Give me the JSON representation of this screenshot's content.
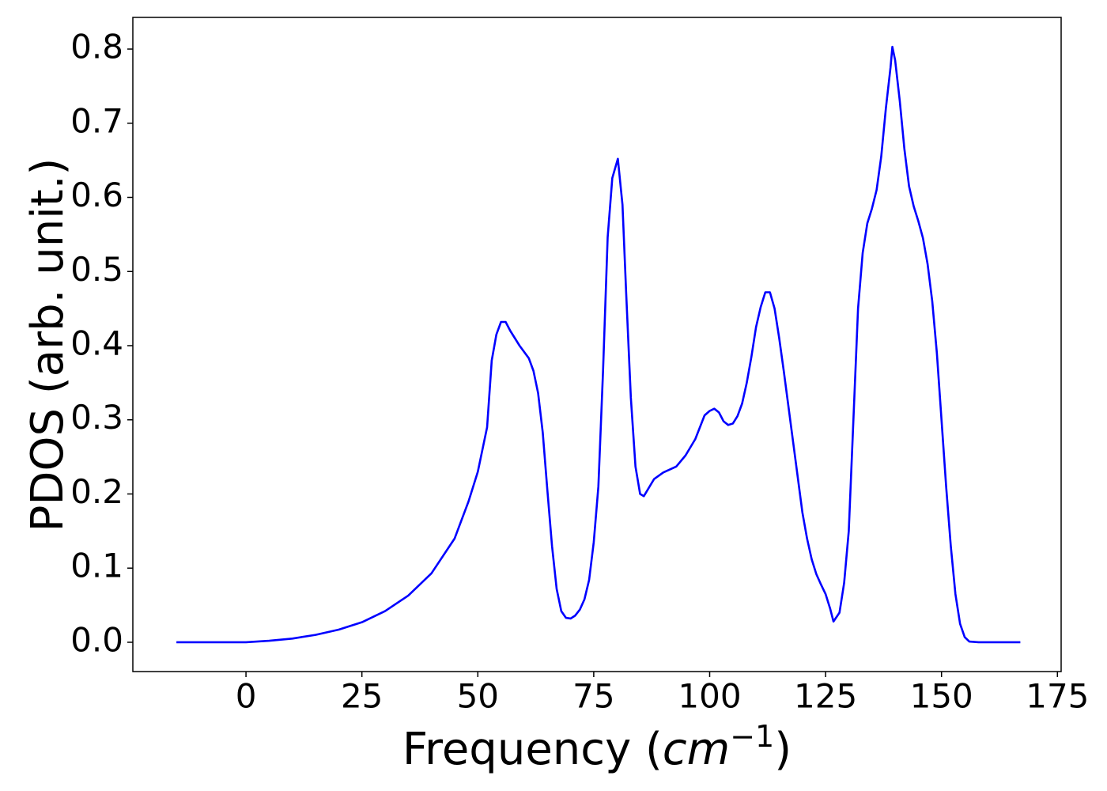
{
  "chart_data": {
    "type": "line",
    "x_label": [
      "Frequency (",
      "cm",
      "−1",
      ")"
    ],
    "y_label": "PDOS (arb. unit.)",
    "x": [
      -15,
      -5,
      0,
      5,
      10,
      15,
      20,
      25,
      30,
      35,
      40,
      45,
      48,
      50,
      51,
      52,
      53,
      54,
      55,
      56,
      57,
      59,
      61,
      62,
      63,
      64,
      65,
      66,
      67,
      68,
      69,
      70,
      71,
      72,
      73,
      74,
      75,
      76,
      77,
      78,
      79,
      80.2,
      81.2,
      82,
      83,
      84,
      85,
      85.8,
      88,
      90,
      92.8,
      94.8,
      96.9,
      98.9,
      100,
      101,
      102,
      103,
      104,
      105,
      106,
      107,
      108,
      109,
      110,
      111,
      112,
      113,
      114,
      115,
      116,
      118,
      120,
      121,
      122,
      123,
      124,
      125,
      126,
      126.7,
      128,
      129,
      130,
      131,
      132,
      133,
      134,
      135,
      136,
      137,
      138,
      139,
      139.4,
      140,
      141,
      142,
      143,
      144,
      145,
      146,
      147,
      148,
      149,
      150,
      151,
      152,
      153,
      154,
      155,
      156,
      158,
      167
    ],
    "series": [
      {
        "name": null,
        "color": "#0000ff",
        "values": [
          0,
          0,
          0,
          0.002,
          0.005,
          0.01,
          0.017,
          0.027,
          0.042,
          0.063,
          0.093,
          0.14,
          0.19,
          0.23,
          0.26,
          0.29,
          0.38,
          0.415,
          0.432,
          0.432,
          0.42,
          0.4,
          0.383,
          0.366,
          0.336,
          0.283,
          0.205,
          0.13,
          0.072,
          0.042,
          0.033,
          0.032,
          0.036,
          0.044,
          0.058,
          0.084,
          0.135,
          0.21,
          0.365,
          0.546,
          0.626,
          0.652,
          0.59,
          0.47,
          0.33,
          0.237,
          0.2,
          0.197,
          0.22,
          0.229,
          0.237,
          0.252,
          0.274,
          0.306,
          0.312,
          0.315,
          0.31,
          0.298,
          0.293,
          0.295,
          0.305,
          0.322,
          0.35,
          0.385,
          0.425,
          0.452,
          0.472,
          0.472,
          0.45,
          0.41,
          0.365,
          0.27,
          0.175,
          0.14,
          0.112,
          0.092,
          0.078,
          0.065,
          0.045,
          0.028,
          0.04,
          0.08,
          0.15,
          0.3,
          0.45,
          0.525,
          0.565,
          0.585,
          0.61,
          0.655,
          0.72,
          0.775,
          0.803,
          0.785,
          0.73,
          0.665,
          0.615,
          0.588,
          0.568,
          0.545,
          0.51,
          0.46,
          0.39,
          0.3,
          0.21,
          0.13,
          0.065,
          0.025,
          0.007,
          0.001,
          0,
          0
        ]
      }
    ],
    "xlim": [
      -24.4,
      175.8
    ],
    "xticks": [
      0,
      25,
      50,
      75,
      100,
      125,
      150,
      175
    ],
    "ylim": [
      -0.0395,
      0.8427
    ],
    "yticks": [
      {
        "value": 0,
        "label": "0.0"
      },
      0.1,
      0.2,
      0.3,
      0.4,
      0.5,
      0.6,
      0.7,
      0.8
    ],
    "grid": false
  }
}
